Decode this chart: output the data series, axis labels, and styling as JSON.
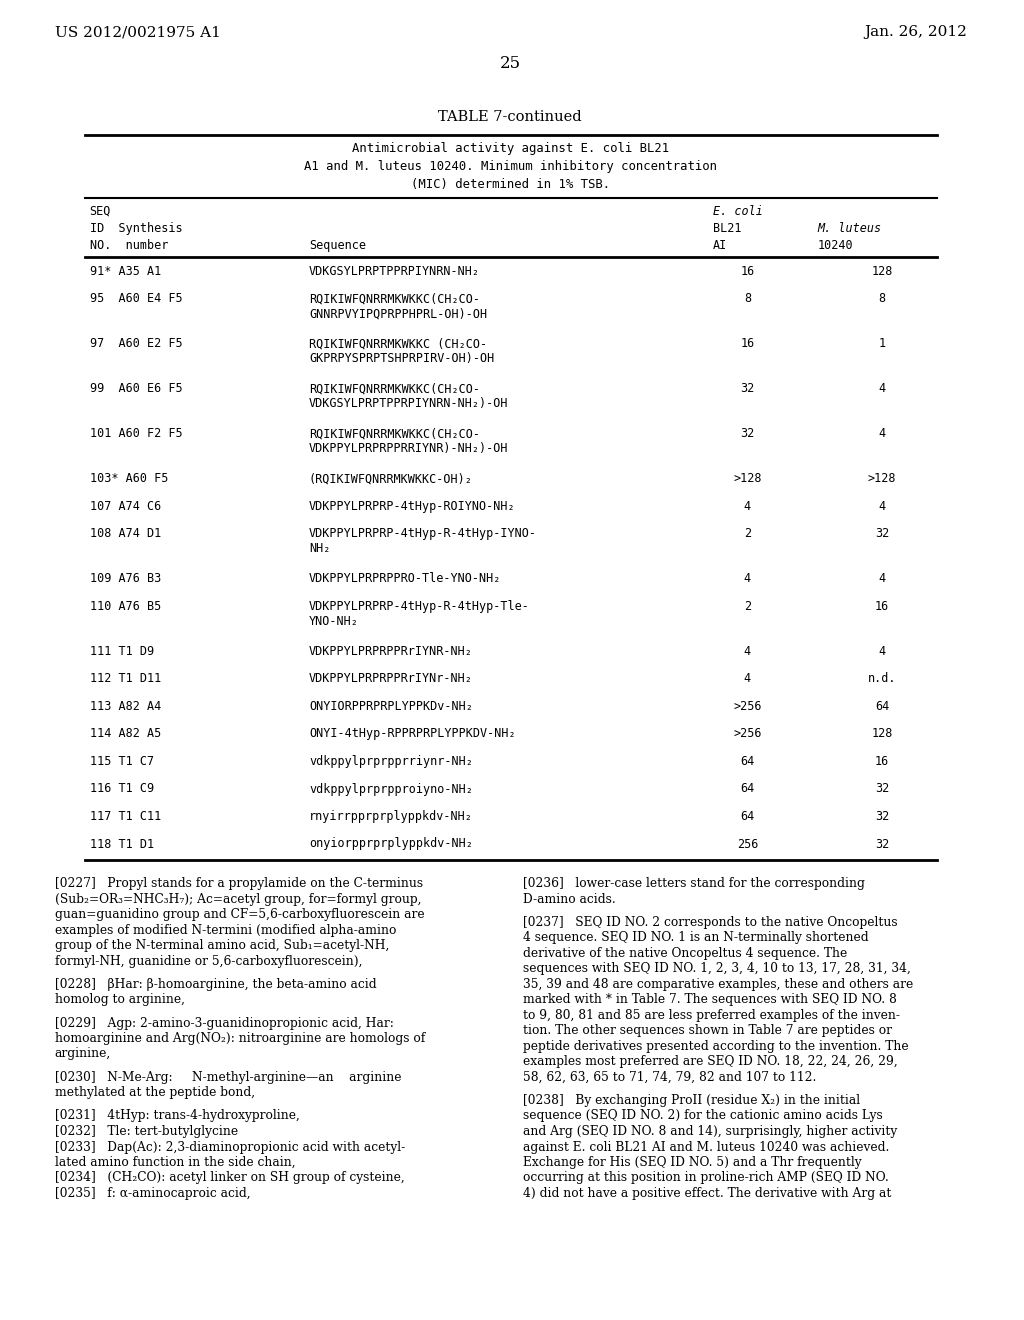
{
  "header_left": "US 2012/0021975 A1",
  "header_right": "Jan. 26, 2012",
  "page_num": "25",
  "table_title": "TABLE 7-continued",
  "table_subtitle1": "Antimicrobial activity against E. coli BL21",
  "table_subtitle2": "A1 and M. luteus 10240. Minimum inhibitory concentration",
  "table_subtitle3": "(MIC) determined in 1% TSB.",
  "col_headers": [
    "SEQ\nID  Synthesis\nNO.  number",
    "Sequence",
    "E. coli\nBL21\nAI",
    "M. luteus\n10240"
  ],
  "rows": [
    [
      "91* A35 A1",
      "VDKGSYLPRPTPPRPIYNRN-NH₂",
      "16",
      "128"
    ],
    [
      "95  A60 E4 F5",
      "RQIKIWFQNRRMKWKKC(CH₂CO-\nGNNRPVYIPQPRPPHPRL-OH)-OH",
      "8",
      "8"
    ],
    [
      "97  A60 E2 F5",
      "RQIKIWFQNRRMKWKKC (CH₂CO-\nGKPRPYSPRPTSHPRPIRV-OH)-OH",
      "16",
      "1"
    ],
    [
      "99  A60 E6 F5",
      "RQIKIWFQNRRMKWKKC(CH₂CO-\nVDKGSYLPRPTPPRPIYNRN-NH₂)-OH",
      "32",
      "4"
    ],
    [
      "101 A60 F2 F5",
      "RQIKIWFQNRRMKWKKC(CH₂CO-\nVDKPPYLPRPRPPRRIYNR)-NH₂)-OH",
      "32",
      "4"
    ],
    [
      "103* A60 F5",
      "(RQIKIWFQNRRMKWKKC-OH)₂",
      ">128",
      ">128"
    ],
    [
      "107 A74 C6",
      "VDKPPYLPRPRP-4tHyp-ROIYNO-NH₂",
      "4",
      "4"
    ],
    [
      "108 A74 D1",
      "VDKPPYLPRPRP-4tHyp-R-4tHyp-IYNO-\nNH₂",
      "2",
      "32"
    ],
    [
      "109 A76 B3",
      "VDKPPYLPRPRPPRO-Tle-YNO-NH₂",
      "4",
      "4"
    ],
    [
      "110 A76 B5",
      "VDKPPYLPRPRP-4tHyp-R-4tHyp-Tle-\nYNO-NH₂",
      "2",
      "16"
    ],
    [
      "111 T1 D9",
      "VDKPPYLPRPRPPRrIYNR-NH₂",
      "4",
      "4"
    ],
    [
      "112 T1 D11",
      "VDKPPYLPRPRPPRrIYNr-NH₂",
      "4",
      "n.d."
    ],
    [
      "113 A82 A4",
      "ONYIORPPRPRPLYPPKDv-NH₂",
      ">256",
      "64"
    ],
    [
      "114 A82 A5",
      "ONYI-4tHyp-RPPRPRPLYPPKDV-NH₂",
      ">256",
      "128"
    ],
    [
      "115 T1 C7",
      "vdkppylprprpprriynr-NH₂",
      "64",
      "16"
    ],
    [
      "116 T1 C9",
      "vdkppylprprpproiyno-NH₂",
      "64",
      "32"
    ],
    [
      "117 T1 C11",
      "rnyirrpprprplyppkdv-NH₂",
      "64",
      "32"
    ],
    [
      "118 T1 D1",
      "onyiorpprprplyppkdv-NH₂",
      "256",
      "32"
    ]
  ],
  "footnote_left": [
    "[0227]   Propyl stands for a propylamide on the C-terminus",
    "(Sub₂=OR₃=NHC₃H₇); Ac=acetyl group, for=formyl group,",
    "guan=guanidino group and CF=5,6-carboxyfluorescein are",
    "examples of modified N-termini (modified alpha-amino",
    "group of the N-terminal amino acid, Sub₁=acetyl-NH,",
    "formyl-NH, guanidine or 5,6-carboxyfluorescein),",
    "",
    "[0228]   βHar: β-homoarginine, the beta-amino acid",
    "homolog to arginine,",
    "",
    "[0229]   Agp: 2-amino-3-guanidinopropionic acid, Har:",
    "homoarginine and Arg(NO₂): nitroarginine are homologs of",
    "arginine,",
    "",
    "[0230]   N-Me-Arg:     N-methyl-arginine—an    arginine",
    "methylated at the peptide bond,",
    "",
    "[0231]   4tHyp: trans-4-hydroxyproline,",
    "[0232]   Tle: tert-butylglycine",
    "[0233]   Dap(Ac): 2,3-diaminopropionic acid with acetyl-",
    "lated amino function in the side chain,",
    "[0234]   (CH₂CO): acetyl linker on SH group of cysteine,",
    "[0235]   f: α-aminocaproic acid,"
  ],
  "footnote_right": [
    "[0236]   lower-case letters stand for the corresponding",
    "D-amino acids.",
    "",
    "[0237]   SEQ ID NO. 2 corresponds to the native Oncopeltus",
    "4 sequence. SEQ ID NO. 1 is an N-terminally shortened",
    "derivative of the native Oncopeltus 4 sequence. The",
    "sequences with SEQ ID NO. 1, 2, 3, 4, 10 to 13, 17, 28, 31, 34,",
    "35, 39 and 48 are comparative examples, these and others are",
    "marked with * in Table 7. The sequences with SEQ ID NO. 8",
    "to 9, 80, 81 and 85 are less preferred examples of the inven-",
    "tion. The other sequences shown in Table 7 are peptides or",
    "peptide derivatives presented according to the invention. The",
    "examples most preferred are SEQ ID NO. 18, 22, 24, 26, 29,",
    "58, 62, 63, 65 to 71, 74, 79, 82 and 107 to 112.",
    "",
    "[0238]   By exchanging ProII (residue X₂) in the initial",
    "sequence (SEQ ID NO. 2) for the cationic amino acids Lys",
    "and Arg (SEQ ID NO. 8 and 14), surprisingly, higher activity",
    "against E. coli BL21 AI and M. luteus 10240 was achieved.",
    "Exchange for His (SEQ ID NO. 5) and a Thr frequently",
    "occurring at this position in proline-rich AMP (SEQ ID NO.",
    "4) did not have a positive effect. The derivative with Arg at"
  ],
  "bg_color": "#ffffff",
  "text_color": "#000000",
  "font_size_header": 11,
  "font_size_table": 8.5,
  "font_size_body": 9
}
